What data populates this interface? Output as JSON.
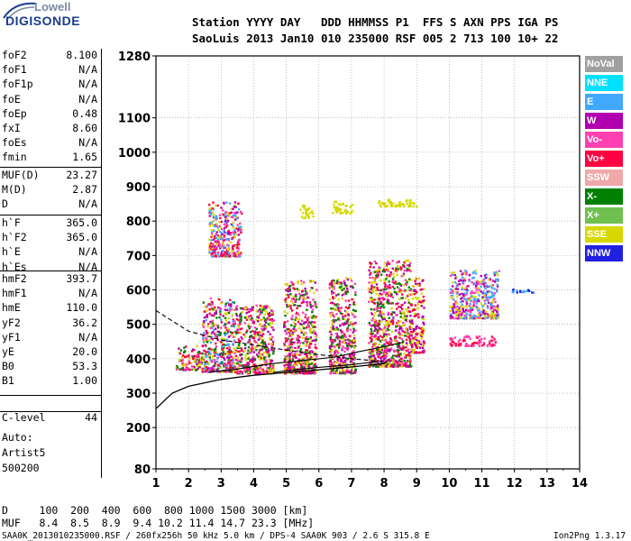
{
  "logo": {
    "line1": "Lowell",
    "line2": "DIGISONDE"
  },
  "header": {
    "row1": "Station YYYY DAY   DDD HHMMSS P1  FFS S AXN PPS IGA PS",
    "row2": "SaoLuis 2013 Jan10 010 235000 RSF 005 2 713 100 10+ 22"
  },
  "params_group1": [
    {
      "label": "foF2",
      "value": "8.100"
    },
    {
      "label": "foF1",
      "value": "N/A"
    },
    {
      "label": "foF1p",
      "value": "N/A"
    },
    {
      "label": "foE",
      "value": "N/A"
    },
    {
      "label": "foEp",
      "value": "0.48"
    },
    {
      "label": "fxI",
      "value": "8.60"
    },
    {
      "label": "foEs",
      "value": "N/A"
    },
    {
      "label": "fmin",
      "value": "1.65"
    }
  ],
  "params_group2": [
    {
      "label": "MUF(D)",
      "value": "23.27"
    },
    {
      "label": "M(D)",
      "value": "2.87"
    },
    {
      "label": "D",
      "value": "N/A"
    }
  ],
  "params_group3": [
    {
      "label": "h`F",
      "value": "365.0"
    },
    {
      "label": "h`F2",
      "value": "365.0"
    },
    {
      "label": "h`E",
      "value": "N/A"
    },
    {
      "label": "h`Es",
      "value": "N/A"
    }
  ],
  "params_group4": [
    {
      "label": "hmF2",
      "value": "393.7"
    },
    {
      "label": "hmF1",
      "value": "N/A"
    },
    {
      "label": "hmE",
      "value": "110.0"
    },
    {
      "label": "yF2",
      "value": "36.2"
    },
    {
      "label": "yF1",
      "value": "N/A"
    },
    {
      "label": "yE",
      "value": "20.0"
    },
    {
      "label": "B0",
      "value": "53.3"
    },
    {
      "label": "B1",
      "value": "1.00"
    }
  ],
  "clevel": {
    "label": "C-level",
    "value": "44"
  },
  "auto": [
    "Auto:",
    "Artist5",
    "500200"
  ],
  "legend": [
    {
      "label": "NoVal",
      "color": "#a0a0a0"
    },
    {
      "label": "NNE",
      "color": "#00e0ff"
    },
    {
      "label": "E",
      "color": "#40a8ff"
    },
    {
      "label": "W",
      "color": "#b000b0"
    },
    {
      "label": "Vo-",
      "color": "#ff40b0"
    },
    {
      "label": "Vo+",
      "color": "#ff0040"
    },
    {
      "label": "SSW",
      "color": "#f0a8a8"
    },
    {
      "label": "X-",
      "color": "#008000"
    },
    {
      "label": "X+",
      "color": "#70c050"
    },
    {
      "label": "SSE",
      "color": "#d8d800"
    },
    {
      "label": "NNW",
      "color": "#2020e0"
    }
  ],
  "footer": {
    "d_row": "D     100  200  400  600  800 1000 1500 3000 [km]",
    "muf_row": "MUF   8.4  8.5  8.9  9.4 10.2 11.4 14.7 23.3 [MHz]",
    "meta_left": "SAA0K_2013010235000.RSF / 260fx256h 50 kHz 5.0 km / DPS-4 SAA0K 903 / 2.6 S 315.8 E",
    "meta_right": "Ion2Png 1.3.17"
  },
  "chart_data": {
    "type": "scatter",
    "x_range": [
      1,
      14
    ],
    "y_range": [
      80,
      1280
    ],
    "x_ticks": [
      "1",
      "2",
      "3",
      "4",
      "5",
      "6",
      "7",
      "8",
      "9",
      "10",
      "11",
      "12",
      "13",
      "14"
    ],
    "y_ticks": [
      "80",
      "200",
      "300",
      "400",
      "500",
      "600",
      "700",
      "800",
      "900",
      "1000",
      "1100",
      "1280"
    ],
    "grid": true,
    "legend_position": "right",
    "echo_clusters": [
      {
        "x": [
          1.6,
          2.4
        ],
        "y": [
          370,
          440
        ],
        "colors": [
          "#b000b0",
          "#ff0040",
          "#d8d800",
          "#008000",
          "#ff40b0"
        ]
      },
      {
        "x": [
          2.4,
          3.4
        ],
        "y": [
          365,
          580
        ],
        "colors": [
          "#b000b0",
          "#ff0040",
          "#d8d800",
          "#008000",
          "#ff40b0",
          "#40a8ff"
        ]
      },
      {
        "x": [
          3.4,
          4.6
        ],
        "y": [
          360,
          560
        ],
        "colors": [
          "#b000b0",
          "#ff0040",
          "#d8d800",
          "#ff40b0",
          "#008000"
        ]
      },
      {
        "x": [
          4.9,
          5.9
        ],
        "y": [
          360,
          630
        ],
        "colors": [
          "#d8d800",
          "#b000b0",
          "#ff0040",
          "#008000",
          "#ff40b0"
        ]
      },
      {
        "x": [
          6.3,
          7.1
        ],
        "y": [
          360,
          640
        ],
        "colors": [
          "#d8d800",
          "#b000b0",
          "#ff0040",
          "#ff40b0",
          "#008000"
        ]
      },
      {
        "x": [
          7.5,
          8.8
        ],
        "y": [
          380,
          690
        ],
        "colors": [
          "#b000b0",
          "#ff0040",
          "#ff40b0",
          "#d8d800",
          "#008000"
        ]
      },
      {
        "x": [
          8.8,
          9.2
        ],
        "y": [
          420,
          640
        ],
        "colors": [
          "#d8d800",
          "#b000b0",
          "#ff0040"
        ]
      },
      {
        "x": [
          2.6,
          3.6
        ],
        "y": [
          700,
          860
        ],
        "colors": [
          "#d8d800",
          "#ff40b0",
          "#b000b0",
          "#40a8ff",
          "#ff0040"
        ]
      },
      {
        "x": [
          5.4,
          5.8
        ],
        "y": [
          810,
          850
        ],
        "colors": [
          "#d8d800"
        ]
      },
      {
        "x": [
          6.4,
          7.0
        ],
        "y": [
          825,
          860
        ],
        "colors": [
          "#d8d800"
        ]
      },
      {
        "x": [
          7.8,
          9.1
        ],
        "y": [
          845,
          865
        ],
        "colors": [
          "#d8d800"
        ]
      },
      {
        "x": [
          10.0,
          11.4
        ],
        "y": [
          440,
          470
        ],
        "colors": [
          "#ff0040",
          "#ff40b0"
        ]
      },
      {
        "x": [
          10.0,
          11.5
        ],
        "y": [
          520,
          660
        ],
        "colors": [
          "#40a8ff",
          "#d8d800",
          "#b000b0",
          "#ff40b0"
        ]
      },
      {
        "x": [
          11.9,
          12.6
        ],
        "y": [
          595,
          605
        ],
        "colors": [
          "#40a8ff",
          "#2020e0"
        ]
      }
    ],
    "profile_curve": [
      [
        1,
        255
      ],
      [
        1.5,
        300
      ],
      [
        2,
        320
      ],
      [
        3,
        340
      ],
      [
        4,
        352
      ],
      [
        5,
        360
      ],
      [
        6,
        368
      ],
      [
        7,
        376
      ],
      [
        8,
        386
      ],
      [
        8.1,
        393.7
      ]
    ],
    "trace_upper_dashed": [
      [
        1,
        540
      ],
      [
        1.5,
        510
      ],
      [
        2,
        480
      ],
      [
        3,
        455
      ],
      [
        4,
        440
      ],
      [
        5,
        425
      ],
      [
        6,
        412
      ],
      [
        7,
        400
      ],
      [
        8,
        392
      ]
    ],
    "trace_lower_solid": [
      [
        2.6,
        360
      ],
      [
        3.5,
        370
      ],
      [
        4.5,
        385
      ],
      [
        5.5,
        395
      ],
      [
        6.5,
        405
      ],
      [
        7.2,
        420
      ],
      [
        8.0,
        435
      ],
      [
        8.6,
        448
      ]
    ],
    "trace_ordinary": [
      [
        4.6,
        360
      ],
      [
        5,
        365
      ],
      [
        6,
        375
      ],
      [
        7,
        383
      ],
      [
        7.8,
        392
      ]
    ]
  }
}
